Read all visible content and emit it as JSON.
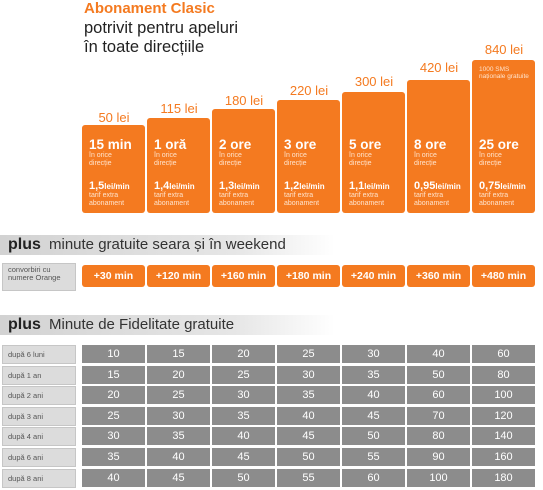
{
  "header": {
    "title": "Abonament Clasic",
    "subtitle_line1": "potrivit pentru apeluri",
    "subtitle_line2": "în toate direcțiile"
  },
  "plans": [
    {
      "price": "50 lei",
      "minutes": "15 min",
      "minutes_note": "în orice direcție",
      "sms": "",
      "rate": "1,5",
      "rate_unit": "lei/min",
      "rate_note": "tarif extra abonament"
    },
    {
      "price": "115 lei",
      "minutes": "1 oră",
      "minutes_note": "în orice direcție",
      "sms": "",
      "rate": "1,4",
      "rate_unit": "lei/min",
      "rate_note": "tarif extra abonament"
    },
    {
      "price": "180 lei",
      "minutes": "2 ore",
      "minutes_note": "în orice direcție",
      "sms": "",
      "rate": "1,3",
      "rate_unit": "lei/min",
      "rate_note": "tarif extra abonament"
    },
    {
      "price": "220 lei",
      "minutes": "3 ore",
      "minutes_note": "în orice direcție",
      "sms": "",
      "rate": "1,2",
      "rate_unit": "lei/min",
      "rate_note": "tarif extra abonament"
    },
    {
      "price": "300 lei",
      "minutes": "5 ore",
      "minutes_note": "în orice direcție",
      "sms": "",
      "rate": "1,1",
      "rate_unit": "lei/min",
      "rate_note": "tarif extra abonament"
    },
    {
      "price": "420 lei",
      "minutes": "8 ore",
      "minutes_note": "în orice direcție",
      "sms": "",
      "rate": "0,95",
      "rate_unit": "lei/min",
      "rate_note": "tarif extra abonament"
    },
    {
      "price": "840 lei",
      "minutes": "25 ore",
      "minutes_note": "în orice direcție",
      "sms": "1000 SMS naționale gratuite",
      "rate": "0,75",
      "rate_unit": "lei/min",
      "rate_note": "tarif extra abonament"
    }
  ],
  "evening": {
    "heading_bold": "plus",
    "heading_rest": "minute gratuite seara și în weekend",
    "row_label": "convorbiri cu numere Orange",
    "values": [
      "+30 min",
      "+120 min",
      "+160 min",
      "+180 min",
      "+240 min",
      "+360 min",
      "+480 min"
    ]
  },
  "fidelity": {
    "heading_bold": "plus",
    "heading_rest": "Minute de Fidelitate gratuite",
    "rows": [
      {
        "label": "după 6 luni",
        "values": [
          "10",
          "15",
          "20",
          "25",
          "30",
          "40",
          "60"
        ]
      },
      {
        "label": "după 1 an",
        "values": [
          "15",
          "20",
          "25",
          "30",
          "35",
          "50",
          "80"
        ]
      },
      {
        "label": "după 2 ani",
        "values": [
          "20",
          "25",
          "30",
          "35",
          "40",
          "60",
          "100"
        ]
      },
      {
        "label": "după 3 ani",
        "values": [
          "25",
          "30",
          "35",
          "40",
          "45",
          "70",
          "120"
        ]
      },
      {
        "label": "după 4 ani",
        "values": [
          "30",
          "35",
          "40",
          "45",
          "50",
          "80",
          "140"
        ]
      },
      {
        "label": "după 6 ani",
        "values": [
          "35",
          "40",
          "45",
          "50",
          "55",
          "90",
          "160"
        ]
      },
      {
        "label": "după 8 ani",
        "values": [
          "40",
          "45",
          "50",
          "55",
          "60",
          "100",
          "180"
        ]
      }
    ]
  },
  "colors": {
    "accent": "#f47a20",
    "cell": "#8c8c8c",
    "label_bg": "#dcdcdc"
  }
}
